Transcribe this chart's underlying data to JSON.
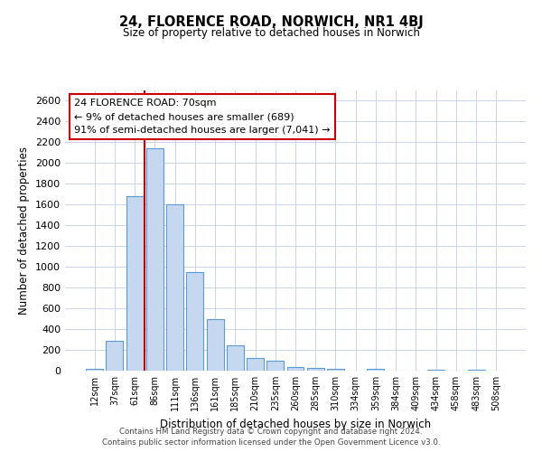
{
  "title": "24, FLORENCE ROAD, NORWICH, NR1 4BJ",
  "subtitle": "Size of property relative to detached houses in Norwich",
  "xlabel": "Distribution of detached houses by size in Norwich",
  "ylabel": "Number of detached properties",
  "bar_labels": [
    "12sqm",
    "37sqm",
    "61sqm",
    "86sqm",
    "111sqm",
    "136sqm",
    "161sqm",
    "185sqm",
    "210sqm",
    "235sqm",
    "260sqm",
    "285sqm",
    "310sqm",
    "334sqm",
    "359sqm",
    "384sqm",
    "409sqm",
    "434sqm",
    "458sqm",
    "483sqm",
    "508sqm"
  ],
  "bar_values": [
    15,
    290,
    1680,
    2140,
    1600,
    950,
    500,
    245,
    120,
    95,
    35,
    25,
    15,
    0,
    15,
    0,
    0,
    10,
    0,
    5,
    0
  ],
  "bar_color": "#c5d8f0",
  "bar_edge_color": "#5b9bd5",
  "bar_edge_width": 0.8,
  "vline_color": "#cc0000",
  "ylim": [
    0,
    2700
  ],
  "yticks": [
    0,
    200,
    400,
    600,
    800,
    1000,
    1200,
    1400,
    1600,
    1800,
    2000,
    2200,
    2400,
    2600
  ],
  "annotation_title": "24 FLORENCE ROAD: 70sqm",
  "annotation_line1": "← 9% of detached houses are smaller (689)",
  "annotation_line2": "91% of semi-detached houses are larger (7,041) →",
  "annotation_box_color": "#ffffff",
  "annotation_box_edge": "#cc0000",
  "footer1": "Contains HM Land Registry data © Crown copyright and database right 2024.",
  "footer2": "Contains public sector information licensed under the Open Government Licence v3.0.",
  "bg_color": "#ffffff",
  "grid_color": "#c8d4e8"
}
